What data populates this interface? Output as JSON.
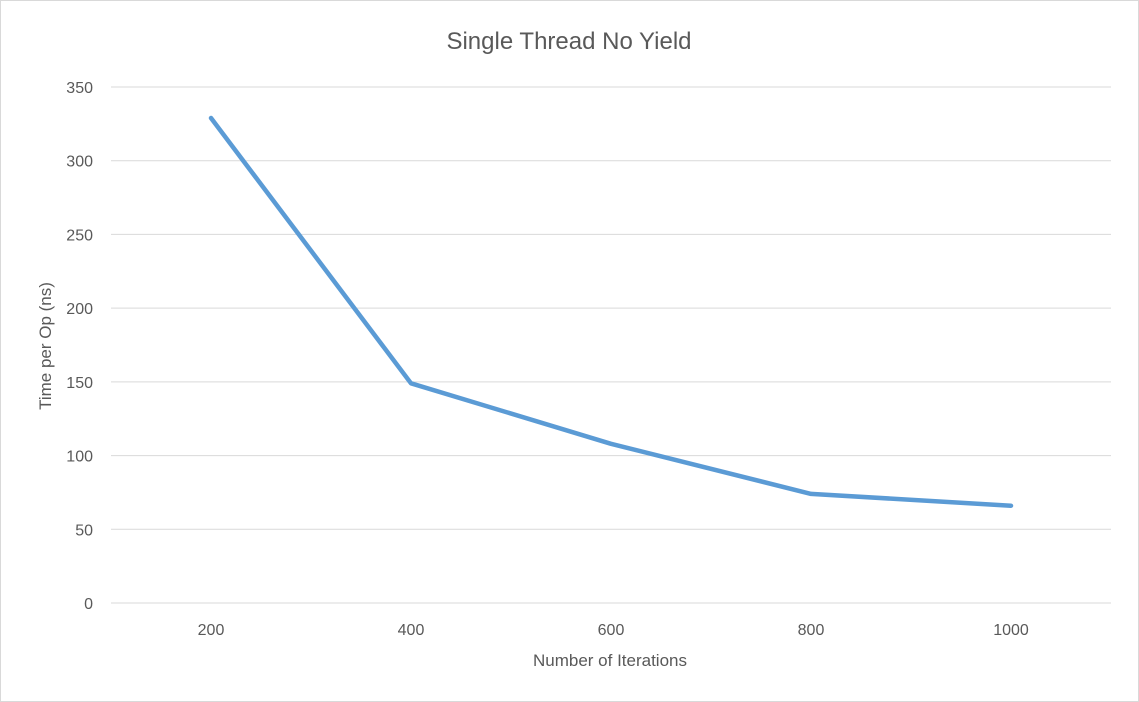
{
  "chart_data": {
    "type": "line",
    "title": "Single Thread No Yield",
    "xlabel": "Number of Iterations",
    "ylabel": "Time per Op (ns)",
    "categories": [
      "200",
      "400",
      "600",
      "800",
      "1000"
    ],
    "series": [
      {
        "values": [
          329,
          149,
          108,
          74,
          66
        ],
        "color": "#5b9bd5"
      }
    ],
    "ylim": [
      0,
      350
    ],
    "yticks": [
      0,
      50,
      100,
      150,
      200,
      250,
      300,
      350
    ],
    "grid": true,
    "legend": "none"
  }
}
